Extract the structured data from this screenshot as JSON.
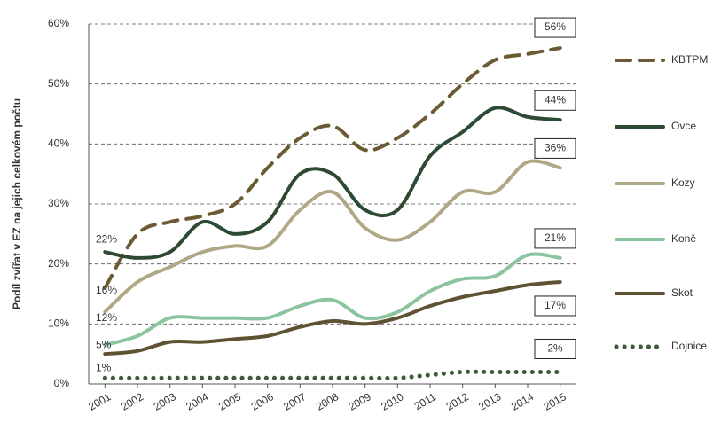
{
  "chart_data": {
    "type": "line",
    "y_label": "Podíl zvířat v EZ na jejich celkovém počtu",
    "categories": [
      "2001",
      "2002",
      "2003",
      "2004",
      "2005",
      "2006",
      "2007",
      "2008",
      "2009",
      "2010",
      "2011",
      "2012",
      "2013",
      "2014",
      "2015"
    ],
    "ylim": [
      0,
      60
    ],
    "yticks": [
      {
        "value": 0,
        "label": "0%"
      },
      {
        "value": 10,
        "label": "10%"
      },
      {
        "value": 20,
        "label": "20%"
      },
      {
        "value": 30,
        "label": "30%"
      },
      {
        "value": 40,
        "label": "40%"
      },
      {
        "value": 50,
        "label": "50%"
      },
      {
        "value": 60,
        "label": "60%"
      }
    ],
    "grid": true,
    "legend": "right",
    "series": [
      {
        "name": "KBTPM",
        "color": "#6b5a34",
        "style": "dashed",
        "values": [
          16,
          25,
          27,
          28,
          30,
          36,
          41,
          43,
          39,
          41,
          45,
          50,
          54,
          55,
          56
        ],
        "value_labels": [
          "16%",
          null,
          null,
          null,
          null,
          null,
          null,
          null,
          null,
          null,
          null,
          null,
          null,
          null,
          "56%"
        ]
      },
      {
        "name": "Ovce",
        "color": "#2d4a35",
        "style": "solid",
        "values": [
          22,
          21,
          22,
          27,
          25,
          27,
          35,
          35,
          29,
          29,
          38,
          42,
          46,
          44.5,
          44
        ],
        "value_labels": [
          "22%",
          null,
          null,
          null,
          null,
          null,
          null,
          null,
          null,
          null,
          null,
          null,
          null,
          null,
          "44%"
        ]
      },
      {
        "name": "Kozy",
        "color": "#b0a884",
        "style": "solid",
        "values": [
          12,
          17,
          19.5,
          22,
          23,
          23,
          29,
          32,
          26,
          24,
          27,
          32,
          32,
          37,
          36
        ],
        "value_labels": [
          "12%",
          null,
          null,
          null,
          null,
          null,
          null,
          null,
          null,
          null,
          null,
          null,
          null,
          null,
          "36%"
        ]
      },
      {
        "name": "Koně",
        "color": "#8cc4a0",
        "style": "solid",
        "values": [
          6.5,
          8,
          11,
          11,
          11,
          11,
          13,
          14,
          11,
          12,
          15.5,
          17.5,
          18,
          21.5,
          21
        ],
        "value_labels": [
          null,
          null,
          null,
          null,
          null,
          null,
          null,
          null,
          null,
          null,
          null,
          null,
          null,
          null,
          "21%"
        ]
      },
      {
        "name": "Skot",
        "color": "#5e5232",
        "style": "solid",
        "values": [
          5,
          5.5,
          7,
          7,
          7.5,
          8,
          9.5,
          10.5,
          10,
          11,
          13,
          14.5,
          15.5,
          16.5,
          17
        ],
        "value_labels": [
          "5%",
          null,
          null,
          null,
          null,
          null,
          null,
          null,
          null,
          null,
          null,
          null,
          null,
          null,
          "17%"
        ]
      },
      {
        "name": "Dojnice",
        "color": "#3e5a3a",
        "style": "dotted",
        "values": [
          1,
          1,
          1,
          1,
          1,
          1,
          1,
          1,
          1,
          1,
          1.5,
          2,
          2,
          2,
          2
        ],
        "value_labels": [
          "1%",
          null,
          null,
          null,
          null,
          null,
          null,
          null,
          null,
          null,
          null,
          null,
          null,
          null,
          "2%"
        ]
      }
    ]
  }
}
